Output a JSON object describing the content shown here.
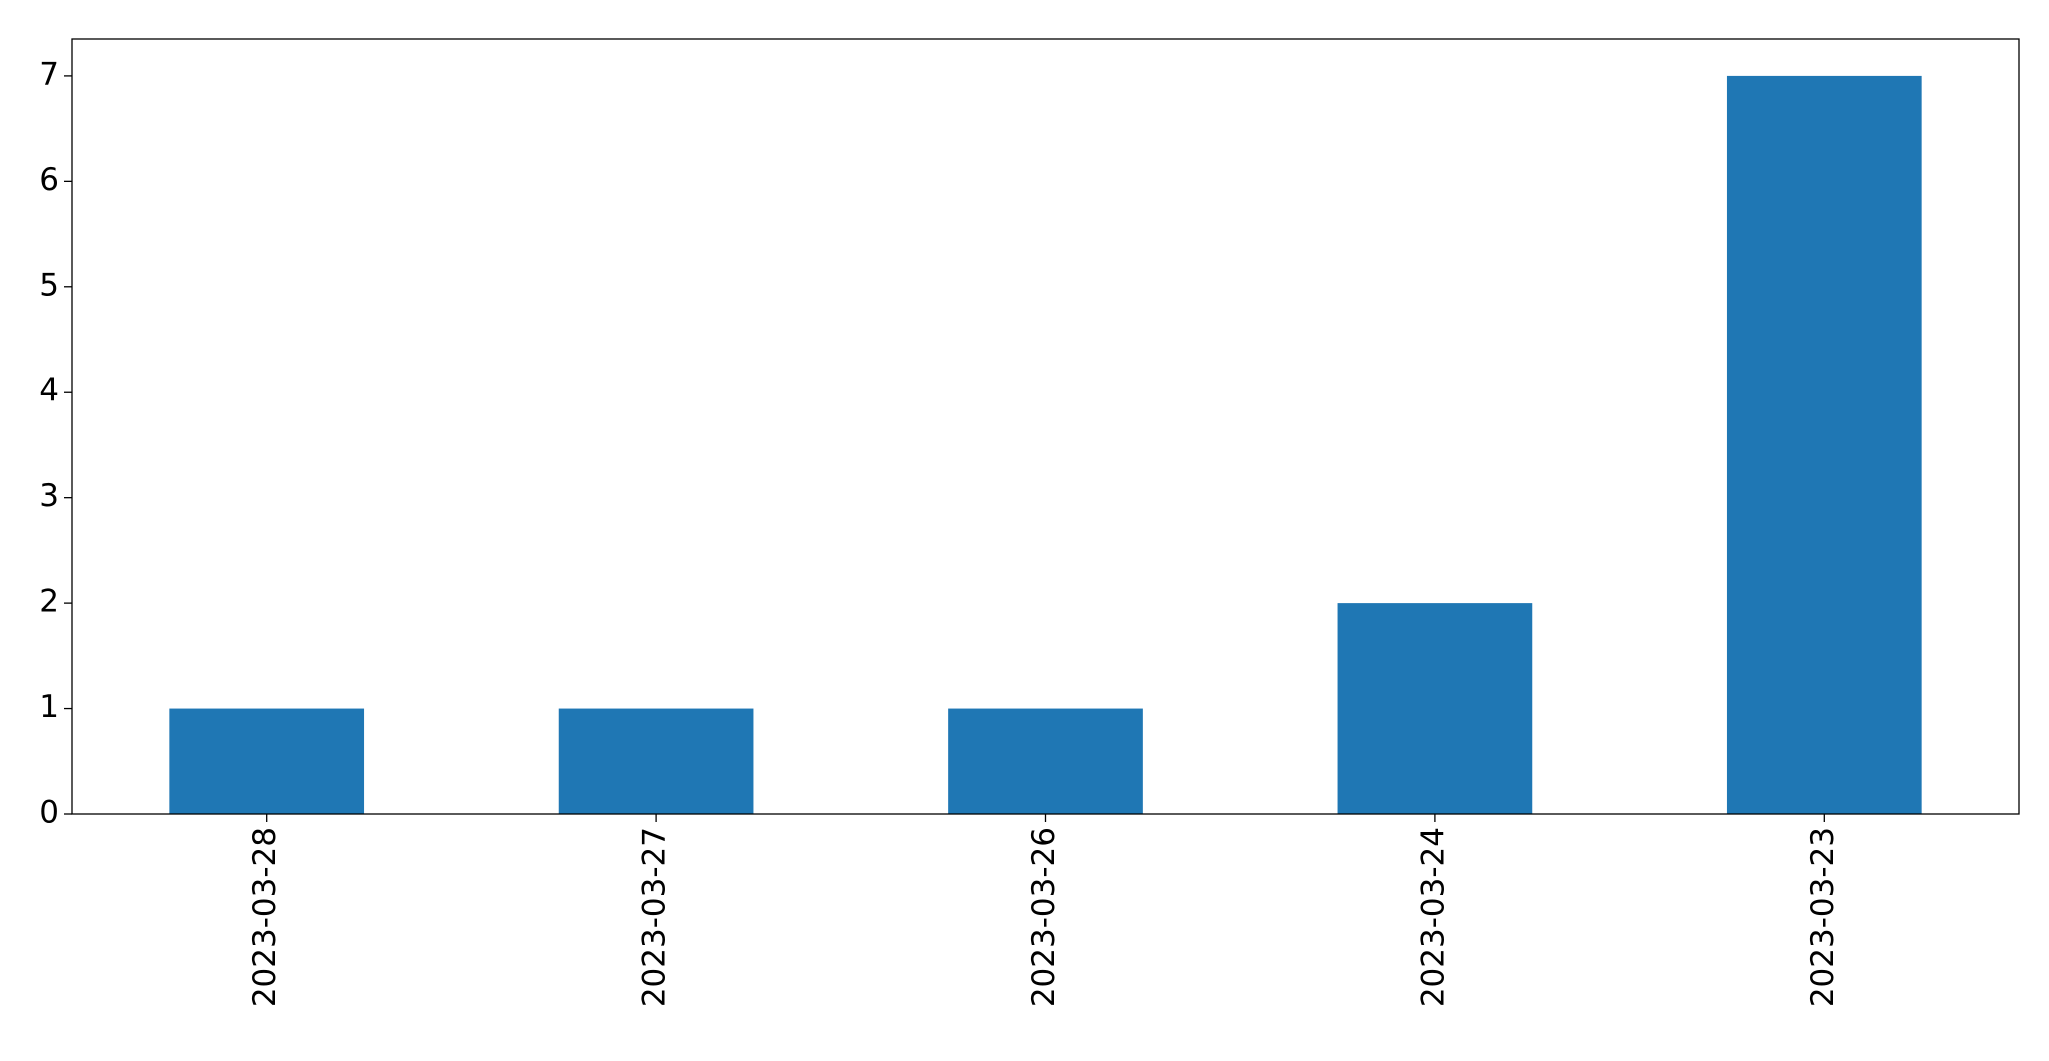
{
  "chart_data": {
    "type": "bar",
    "categories": [
      "2023-03-28",
      "2023-03-27",
      "2023-03-26",
      "2023-03-24",
      "2023-03-23"
    ],
    "values": [
      1,
      1,
      1,
      2,
      7
    ],
    "color": "#1f77b4",
    "ylim": [
      0,
      7.35
    ],
    "yticks": [
      0,
      1,
      2,
      3,
      4,
      5,
      6,
      7
    ],
    "grid": false
  }
}
